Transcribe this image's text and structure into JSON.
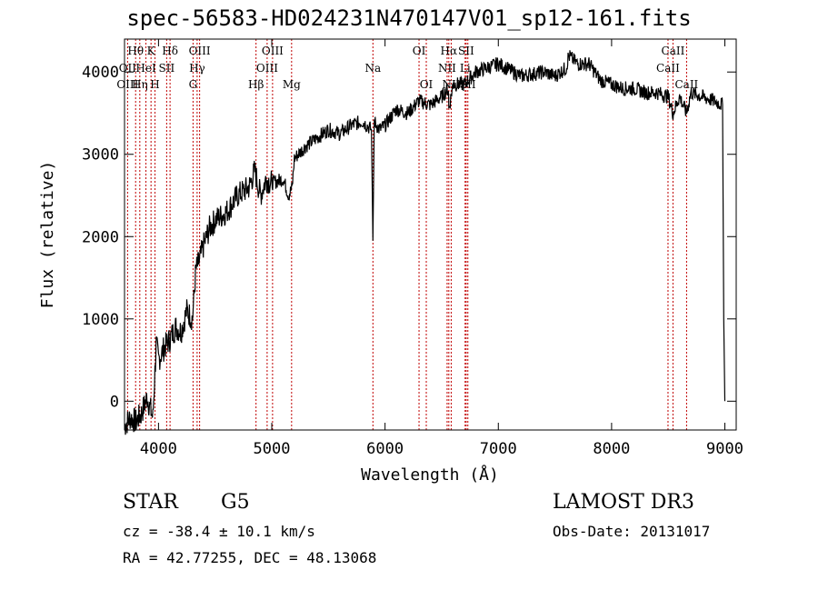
{
  "title": "spec-56583-HD024231N470147V01_sp12-161.fits",
  "info": {
    "class": "STAR",
    "subclass": "G5",
    "survey": "LAMOST DR3",
    "cz": "cz = -38.4 ± 10.1 km/s",
    "obs_date": "Obs-Date: 20131017",
    "radec": "RA =  42.77255, DEC =  48.13068"
  },
  "chart_data": {
    "type": "line",
    "title": "spec-56583-HD024231N470147V01_sp12-161.fits",
    "xlabel": "Wavelength (Å)",
    "ylabel": "Flux (relative)",
    "xlim": [
      3700,
      9100
    ],
    "ylim": [
      -350,
      4400
    ],
    "xticks": [
      4000,
      5000,
      6000,
      7000,
      8000,
      9000
    ],
    "yticks": [
      0,
      1000,
      2000,
      3000,
      4000
    ],
    "grid": false,
    "series": [
      {
        "x": [
          3700,
          3750,
          3800,
          3850,
          3900,
          3950,
          3980,
          4000,
          4050,
          4100,
          4150,
          4200,
          4250,
          4300,
          4330,
          4360,
          4400,
          4450,
          4500,
          4600,
          4700,
          4800,
          4850,
          4900,
          4950,
          5000,
          5100,
          5150,
          5180,
          5200,
          5300,
          5400,
          5500,
          5600,
          5700,
          5800,
          5880,
          5893,
          5905,
          5950,
          6000,
          6100,
          6200,
          6300,
          6400,
          6500,
          6560,
          6563,
          6600,
          6700,
          6800,
          7000,
          7200,
          7400,
          7500,
          7600,
          7620,
          7700,
          7800,
          7900,
          8000,
          8100,
          8200,
          8300,
          8400,
          8500,
          8542,
          8600,
          8662,
          8700,
          8800,
          8900,
          8980,
          8990,
          9000
        ],
        "y": [
          -300,
          -200,
          -250,
          -150,
          50,
          -200,
          700,
          500,
          650,
          750,
          900,
          850,
          1100,
          1000,
          1600,
          1700,
          1900,
          2100,
          2200,
          2300,
          2500,
          2600,
          2800,
          2500,
          2700,
          2650,
          2700,
          2500,
          2600,
          2950,
          3100,
          3200,
          3300,
          3250,
          3350,
          3400,
          3300,
          1950,
          3400,
          3300,
          3350,
          3550,
          3500,
          3650,
          3600,
          3700,
          3800,
          3550,
          3850,
          3850,
          4000,
          4100,
          3950,
          4000,
          3950,
          4050,
          4200,
          4100,
          4100,
          3900,
          3850,
          3800,
          3800,
          3750,
          3750,
          3700,
          3500,
          3700,
          3500,
          3750,
          3700,
          3650,
          3600,
          1000,
          0
        ]
      }
    ],
    "line_labels": [
      {
        "label": "Hθ",
        "x": 3798,
        "row": 0
      },
      {
        "label": "OII",
        "x": 3727,
        "row": 1
      },
      {
        "label": "OIII",
        "x": 3727,
        "row": 2
      },
      {
        "label": "K",
        "x": 3934,
        "row": 0
      },
      {
        "label": "Hδ",
        "x": 4102,
        "row": 0
      },
      {
        "label": "HeI",
        "x": 3889,
        "row": 1
      },
      {
        "label": "SII",
        "x": 4072,
        "row": 1
      },
      {
        "label": "Hη",
        "x": 3835,
        "row": 2
      },
      {
        "label": "H",
        "x": 3969,
        "row": 2
      },
      {
        "label": "OIII",
        "x": 4363,
        "row": 0
      },
      {
        "label": "Hγ",
        "x": 4341,
        "row": 1
      },
      {
        "label": "G",
        "x": 4305,
        "row": 2
      },
      {
        "label": "OIII",
        "x": 5007,
        "row": 0
      },
      {
        "label": "OIII",
        "x": 4959,
        "row": 1
      },
      {
        "label": "Hβ",
        "x": 4861,
        "row": 2
      },
      {
        "label": "Mg",
        "x": 5175,
        "row": 2
      },
      {
        "label": "Na",
        "x": 5893,
        "row": 1
      },
      {
        "label": "OI",
        "x": 6300,
        "row": 0
      },
      {
        "label": "OI",
        "x": 6364,
        "row": 2
      },
      {
        "label": "Hα",
        "x": 6563,
        "row": 0
      },
      {
        "label": "SII",
        "x": 6716,
        "row": 0
      },
      {
        "label": "NII",
        "x": 6548,
        "row": 1
      },
      {
        "label": "Li",
        "x": 6707,
        "row": 1
      },
      {
        "label": "NII",
        "x": 6584,
        "row": 2
      },
      {
        "label": "SII",
        "x": 6731,
        "row": 2
      },
      {
        "label": "CaII",
        "x": 8542,
        "row": 0
      },
      {
        "label": "CaII",
        "x": 8498,
        "row": 1
      },
      {
        "label": "CaII",
        "x": 8662,
        "row": 2
      }
    ]
  }
}
